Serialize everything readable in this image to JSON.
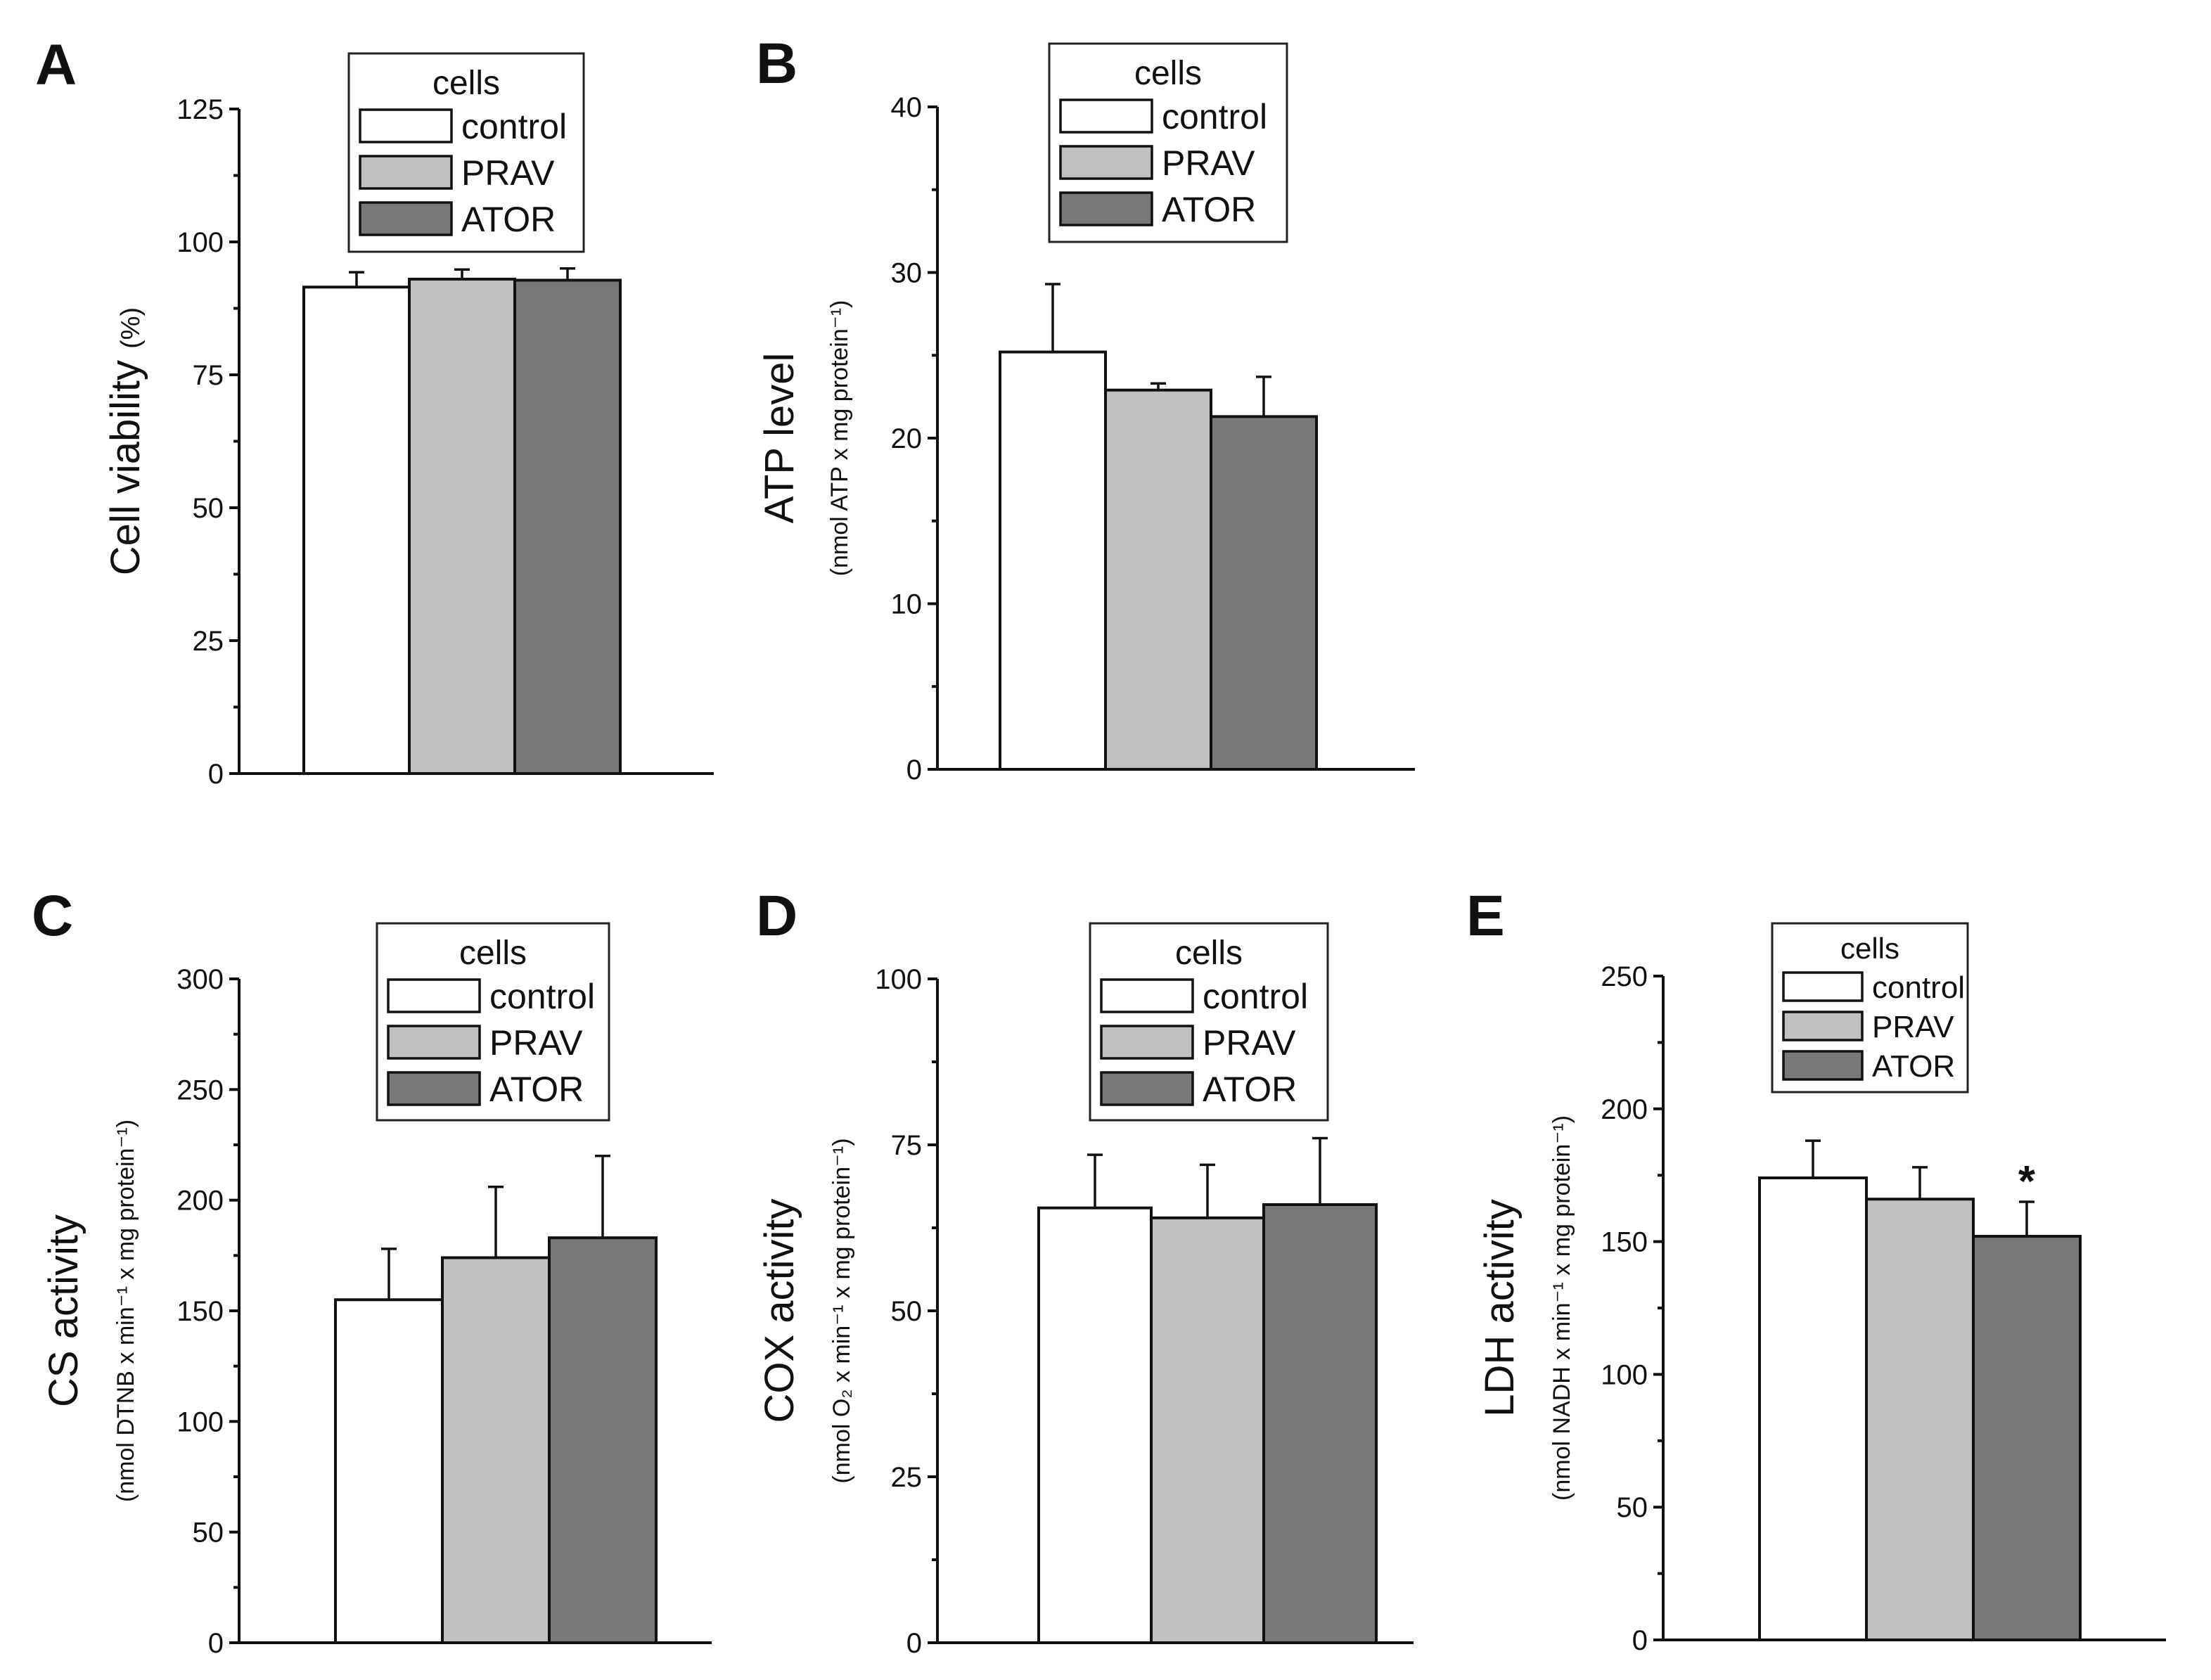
{
  "colors": {
    "control": "#ffffff",
    "PRAV": "#c0c0c0",
    "ATOR": "#787878",
    "axis": "#111111"
  },
  "chart_data": [
    {
      "id": "A",
      "panel": "A",
      "type": "bar",
      "title": "",
      "ylabel": "Cell viability",
      "ylabel_unit": "(%)",
      "ylabel_sub": "",
      "ylim": [
        0,
        125
      ],
      "yticks": [
        0,
        25,
        50,
        75,
        100,
        125
      ],
      "legend_title": "cells",
      "categories": [
        "control",
        "PRAV",
        "ATOR"
      ],
      "values": [
        91.5,
        93,
        92.8
      ],
      "errors": [
        2.8,
        1.8,
        2.2
      ],
      "annotations": [
        "",
        "",
        ""
      ]
    },
    {
      "id": "B",
      "panel": "B",
      "type": "bar",
      "title": "",
      "ylabel": "ATP level",
      "ylabel_unit": "",
      "ylabel_sub": "(nmol ATP x mg protein⁻¹)",
      "ylim": [
        0,
        40
      ],
      "yticks": [
        0,
        10,
        20,
        30,
        40
      ],
      "legend_title": "cells",
      "categories": [
        "control",
        "PRAV",
        "ATOR"
      ],
      "values": [
        25.2,
        22.9,
        21.3
      ],
      "errors": [
        4.1,
        0.4,
        2.4
      ],
      "annotations": [
        "",
        "",
        ""
      ]
    },
    {
      "id": "C",
      "panel": "C",
      "type": "bar",
      "title": "",
      "ylabel": "CS activity",
      "ylabel_unit": "",
      "ylabel_sub": "(nmol DTNB x min⁻¹ x mg protein⁻¹)",
      "ylim": [
        0,
        300
      ],
      "yticks": [
        0,
        50,
        100,
        150,
        200,
        250,
        300
      ],
      "legend_title": "cells",
      "categories": [
        "control",
        "PRAV",
        "ATOR"
      ],
      "values": [
        155,
        174,
        183
      ],
      "errors": [
        23,
        32,
        37
      ],
      "annotations": [
        "",
        "",
        ""
      ]
    },
    {
      "id": "D",
      "panel": "D",
      "type": "bar",
      "title": "",
      "ylabel": "COX activity",
      "ylabel_unit": "",
      "ylabel_sub": "(nmol O₂ x min⁻¹ x mg protein⁻¹)",
      "ylim": [
        0,
        100
      ],
      "yticks": [
        0,
        25,
        50,
        75,
        100
      ],
      "legend_title": "cells",
      "categories": [
        "control",
        "PRAV",
        "ATOR"
      ],
      "values": [
        65.5,
        64,
        66
      ],
      "errors": [
        8,
        8,
        10
      ],
      "annotations": [
        "",
        "",
        ""
      ]
    },
    {
      "id": "E",
      "panel": "E",
      "type": "bar",
      "title": "",
      "ylabel": "LDH activity",
      "ylabel_unit": "",
      "ylabel_sub": "(nmol NADH x min⁻¹ x mg protein⁻¹)",
      "ylim": [
        0,
        250
      ],
      "yticks": [
        0,
        50,
        100,
        150,
        200,
        250
      ],
      "legend_title": "cells",
      "categories": [
        "control",
        "PRAV",
        "ATOR"
      ],
      "values": [
        174,
        166,
        152
      ],
      "errors": [
        14,
        12,
        13
      ],
      "annotations": [
        "",
        "",
        "*"
      ]
    }
  ]
}
